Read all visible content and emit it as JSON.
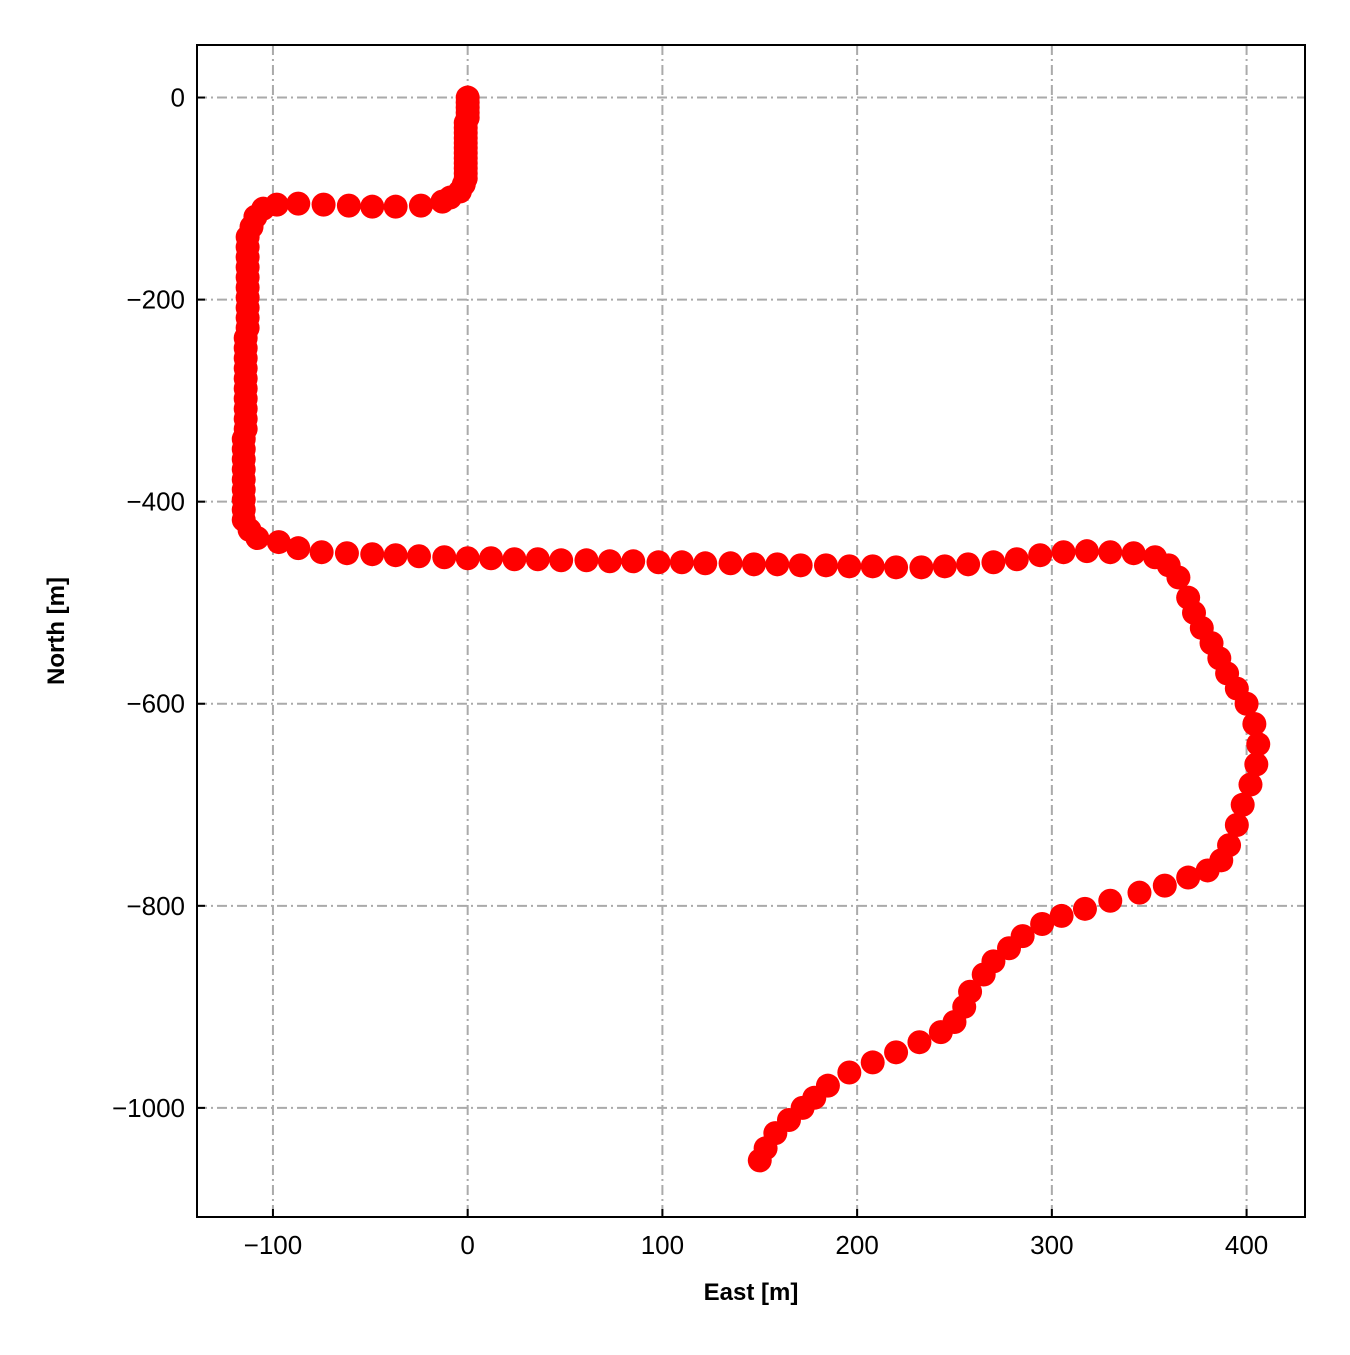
{
  "chart_data": {
    "type": "scatter",
    "x_label": "East [m]",
    "y_label": "North [m]",
    "xlim": [
      -139,
      430
    ],
    "ylim": [
      -1108,
      52
    ],
    "xticks": [
      {
        "value": -100,
        "label": "−100"
      },
      0,
      100,
      200,
      300,
      400
    ],
    "yticks": [
      0,
      {
        "value": -200,
        "label": "−200"
      },
      {
        "value": -400,
        "label": "−400"
      },
      {
        "value": -600,
        "label": "−600"
      },
      {
        "value": -800,
        "label": "−800"
      },
      {
        "value": -1000,
        "label": "−1000"
      }
    ],
    "grid": true,
    "series": [
      {
        "color": "#ff0000",
        "x": [
          0,
          0,
          0,
          0,
          0,
          -1,
          -1,
          -1,
          -1,
          -1,
          -1,
          -1,
          -1,
          -1,
          -1,
          -1,
          -1,
          -2,
          -4,
          -9,
          -13,
          -24,
          -37,
          -49,
          -61,
          -74,
          -87,
          -98,
          -105,
          -109,
          -111,
          -113,
          -113,
          -113,
          -113,
          -113,
          -113,
          -113,
          -113,
          -113,
          -113,
          -114,
          -114,
          -114,
          -114,
          -114,
          -114,
          -114,
          -114,
          -114,
          -114,
          -115,
          -115,
          -115,
          -115,
          -115,
          -115,
          -115,
          -115,
          -115,
          -112,
          -108,
          -97,
          -87,
          -75,
          -62,
          -49,
          -37,
          -25,
          -12,
          0,
          12,
          24,
          36,
          48,
          61,
          73,
          85,
          98,
          110,
          122,
          135,
          147,
          159,
          171,
          184,
          196,
          208,
          220,
          233,
          245,
          257,
          270,
          282,
          294,
          306,
          318,
          330,
          342,
          353,
          360,
          365,
          370,
          373,
          377,
          382,
          386,
          390,
          395,
          400,
          404,
          406,
          405,
          402,
          398,
          395,
          391,
          387,
          380,
          370,
          358,
          345,
          330,
          317,
          305,
          295,
          285,
          278,
          270,
          265,
          258,
          255,
          250,
          243,
          232,
          220,
          208,
          196,
          185,
          178,
          172,
          165,
          158,
          153,
          150
        ],
        "y": [
          0,
          -5,
          -10,
          -15,
          -20,
          -25,
          -30,
          -35,
          -40,
          -45,
          -50,
          -55,
          -60,
          -65,
          -70,
          -75,
          -80,
          -86,
          -93,
          -99,
          -103,
          -107,
          -108,
          -108,
          -107,
          -106,
          -105,
          -106,
          -110,
          -118,
          -128,
          -138,
          -148,
          -158,
          -168,
          -178,
          -188,
          -198,
          -208,
          -218,
          -228,
          -238,
          -248,
          -258,
          -268,
          -278,
          -288,
          -298,
          -308,
          -318,
          -328,
          -338,
          -348,
          -358,
          -368,
          -378,
          -388,
          -398,
          -408,
          -418,
          -428,
          -436,
          -440,
          -446,
          -450,
          -451,
          -452,
          -453,
          -454,
          -455,
          -456,
          -456,
          -457,
          -457,
          -458,
          -458,
          -459,
          -459,
          -460,
          -460,
          -461,
          -461,
          -462,
          -462,
          -463,
          -463,
          -464,
          -464,
          -465,
          -465,
          -464,
          -462,
          -460,
          -457,
          -453,
          -450,
          -449,
          -450,
          -451,
          -455,
          -463,
          -475,
          -495,
          -510,
          -525,
          -540,
          -555,
          -570,
          -585,
          -600,
          -620,
          -640,
          -660,
          -680,
          -700,
          -720,
          -740,
          -755,
          -765,
          -772,
          -780,
          -787,
          -795,
          -803,
          -810,
          -818,
          -830,
          -842,
          -855,
          -868,
          -885,
          -900,
          -915,
          -925,
          -935,
          -945,
          -955,
          -965,
          -978,
          -990,
          -1000,
          -1012,
          -1025,
          -1040,
          -1052
        ]
      }
    ]
  }
}
